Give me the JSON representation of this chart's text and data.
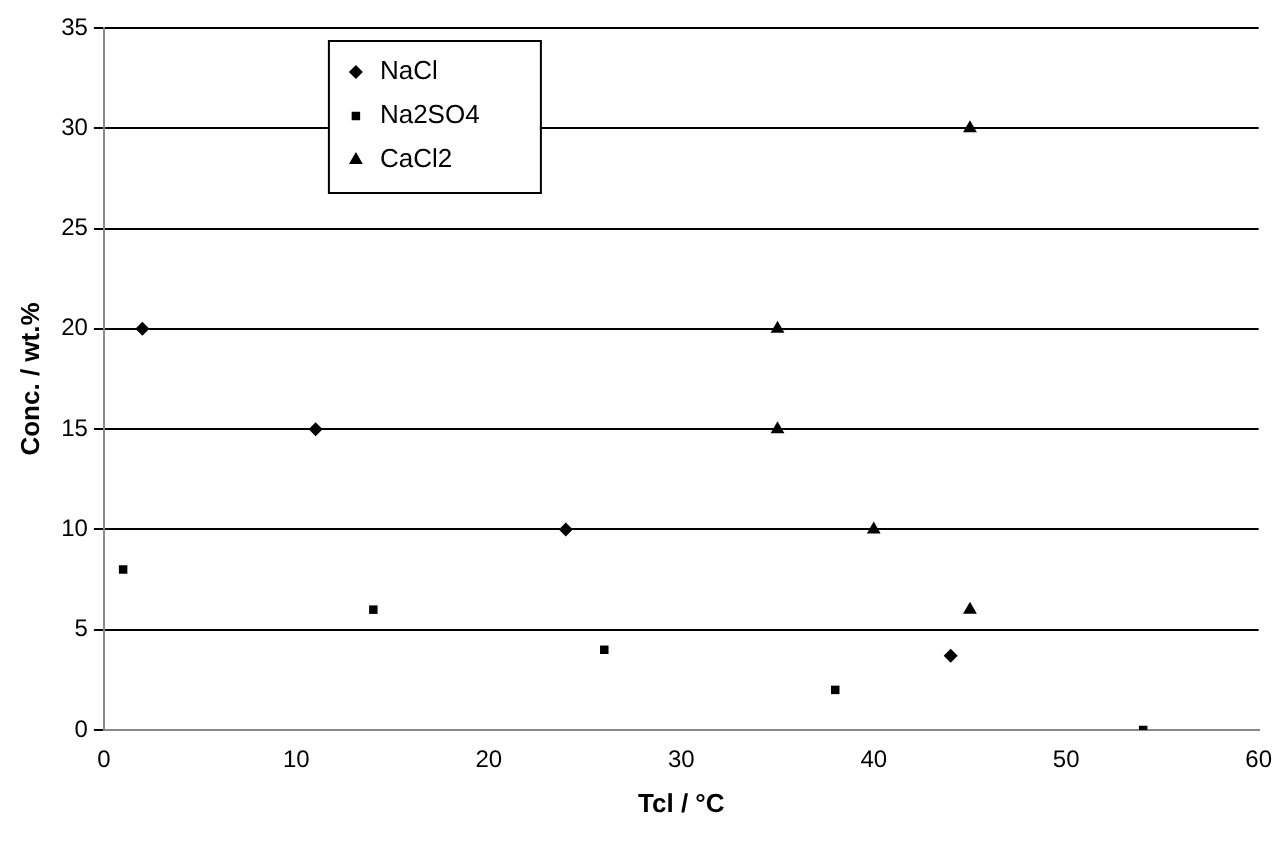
{
  "chart_data": {
    "type": "scatter",
    "xlabel": "Tcl / °C",
    "ylabel": "Conc. / wt.%",
    "xlim": [
      0,
      60
    ],
    "xticks": [
      0,
      10,
      20,
      30,
      40,
      50,
      60
    ],
    "ylim": [
      0,
      35
    ],
    "yticks": [
      0,
      5,
      10,
      15,
      20,
      25,
      30,
      35
    ],
    "grid": "y",
    "legend": "top left",
    "series": [
      {
        "name": "NaCl",
        "color": "#000000",
        "marker": "diamond",
        "x": [
          2,
          11,
          24,
          44
        ],
        "values": [
          20,
          15,
          10,
          3.7
        ]
      },
      {
        "name": "Na2SO4",
        "color": "#000000",
        "marker": "square",
        "x": [
          1,
          14,
          26,
          38,
          54
        ],
        "values": [
          8,
          6,
          4,
          2,
          0
        ]
      },
      {
        "name": "CaCl2",
        "color": "#000000",
        "marker": "triangle",
        "x": [
          45,
          35,
          35,
          40,
          45
        ],
        "values": [
          30,
          20,
          15,
          10,
          6
        ]
      }
    ]
  }
}
